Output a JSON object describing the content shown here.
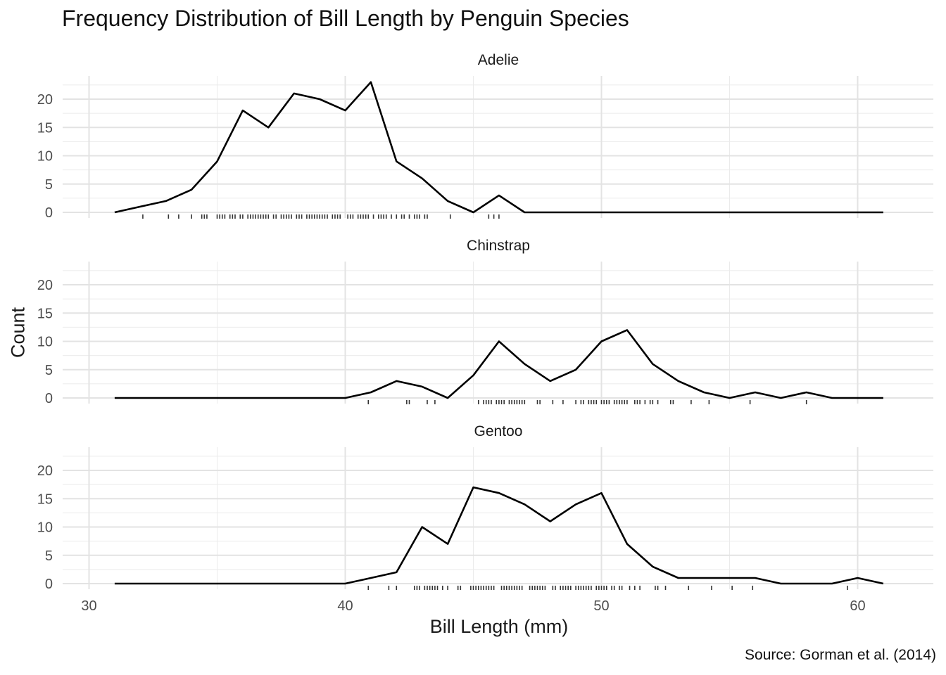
{
  "chart_data": {
    "type": "line",
    "title": "Frequency Distribution of Bill Length by Penguin Species",
    "xlabel": "Bill Length (mm)",
    "ylabel": "Count",
    "caption": "Source: Gorman et al. (2014)",
    "xlim": [
      29,
      62
    ],
    "ylim": [
      0,
      24
    ],
    "x_ticks": [
      30,
      40,
      50,
      60
    ],
    "y_ticks": [
      0,
      5,
      10,
      15,
      20
    ],
    "grid": true,
    "x": [
      31,
      32,
      33,
      34,
      35,
      36,
      37,
      38,
      39,
      40,
      41,
      42,
      43,
      44,
      45,
      46,
      47,
      48,
      49,
      50,
      51,
      52,
      53,
      54,
      55,
      56,
      57,
      58,
      59,
      60,
      61
    ],
    "panels": [
      {
        "name": "Adelie",
        "values": [
          0,
          1,
          2,
          4,
          9,
          18,
          15,
          21,
          20,
          18,
          23,
          9,
          6,
          2,
          0,
          3,
          0,
          0,
          0,
          0,
          0,
          0,
          0,
          0,
          0,
          0,
          0,
          0,
          0,
          0,
          0
        ],
        "rug": [
          32.1,
          33.1,
          33.5,
          34.0,
          34.4,
          34.5,
          34.6,
          35.0,
          35.1,
          35.2,
          35.3,
          35.5,
          35.6,
          35.7,
          35.9,
          36.0,
          36.2,
          36.3,
          36.4,
          36.5,
          36.6,
          36.7,
          36.8,
          36.9,
          37.0,
          37.2,
          37.3,
          37.5,
          37.6,
          37.7,
          37.8,
          37.9,
          38.1,
          38.2,
          38.3,
          38.5,
          38.6,
          38.7,
          38.8,
          38.9,
          39.0,
          39.1,
          39.2,
          39.3,
          39.5,
          39.6,
          39.7,
          39.8,
          40.1,
          40.2,
          40.3,
          40.5,
          40.6,
          40.7,
          40.8,
          40.9,
          41.1,
          41.3,
          41.4,
          41.5,
          41.6,
          41.8,
          42.0,
          42.2,
          42.3,
          42.5,
          42.7,
          42.8,
          42.9,
          43.1,
          43.2,
          44.1,
          45.6,
          45.8,
          46.0
        ]
      },
      {
        "name": "Chinstrap",
        "values": [
          0,
          0,
          0,
          0,
          0,
          0,
          0,
          0,
          0,
          0,
          1,
          3,
          2,
          0,
          4,
          10,
          6,
          3,
          5,
          10,
          12,
          6,
          3,
          1,
          0,
          1,
          0,
          1,
          0,
          0,
          0
        ],
        "rug": [
          40.9,
          42.4,
          42.5,
          43.2,
          43.5,
          45.2,
          45.4,
          45.5,
          45.6,
          45.7,
          45.9,
          46.0,
          46.1,
          46.2,
          46.4,
          46.5,
          46.6,
          46.7,
          46.8,
          46.9,
          47.0,
          47.5,
          47.6,
          48.1,
          48.5,
          49.0,
          49.2,
          49.3,
          49.5,
          49.6,
          49.7,
          49.8,
          50.0,
          50.1,
          50.2,
          50.3,
          50.5,
          50.6,
          50.7,
          50.8,
          50.9,
          51.0,
          51.3,
          51.4,
          51.5,
          51.7,
          51.9,
          52.0,
          52.2,
          52.7,
          52.8,
          53.5,
          54.2,
          55.8,
          58.0
        ]
      },
      {
        "name": "Gentoo",
        "values": [
          0,
          0,
          0,
          0,
          0,
          0,
          0,
          0,
          0,
          0,
          1,
          2,
          10,
          7,
          17,
          16,
          14,
          11,
          14,
          16,
          7,
          3,
          1,
          1,
          1,
          1,
          0,
          0,
          0,
          1,
          0
        ],
        "rug": [
          40.9,
          41.7,
          42.0,
          42.7,
          42.8,
          42.9,
          43.1,
          43.2,
          43.3,
          43.4,
          43.5,
          43.6,
          43.8,
          44.0,
          44.4,
          44.5,
          44.9,
          45.0,
          45.1,
          45.2,
          45.3,
          45.4,
          45.5,
          45.6,
          45.7,
          45.8,
          46.1,
          46.2,
          46.3,
          46.4,
          46.5,
          46.6,
          46.7,
          46.8,
          46.9,
          47.2,
          47.3,
          47.4,
          47.5,
          47.6,
          47.7,
          47.8,
          48.1,
          48.2,
          48.4,
          48.5,
          48.6,
          48.7,
          48.8,
          49.0,
          49.1,
          49.2,
          49.3,
          49.4,
          49.5,
          49.6,
          49.8,
          49.9,
          50.0,
          50.1,
          50.2,
          50.4,
          50.5,
          50.7,
          50.8,
          51.1,
          51.3,
          51.5,
          52.1,
          52.2,
          52.5,
          53.4,
          54.3,
          55.1,
          55.9,
          59.6
        ]
      }
    ]
  }
}
